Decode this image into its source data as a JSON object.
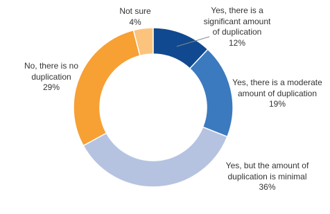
{
  "chart_data": {
    "type": "donut",
    "categories": [
      "Yes, there is a significant amount of duplication",
      "Yes, there is a moderate amount of duplication",
      "Yes, but the amount of duplication is minimal",
      "No, there is no duplication",
      "Not sure"
    ],
    "values": [
      12,
      19,
      36,
      29,
      4
    ],
    "value_labels": [
      "12%",
      "19%",
      "36%",
      "29%",
      "4%"
    ],
    "colors": [
      "#10498f",
      "#3b7abf",
      "#b5c3e1",
      "#f7a034",
      "#fcc37c"
    ]
  }
}
